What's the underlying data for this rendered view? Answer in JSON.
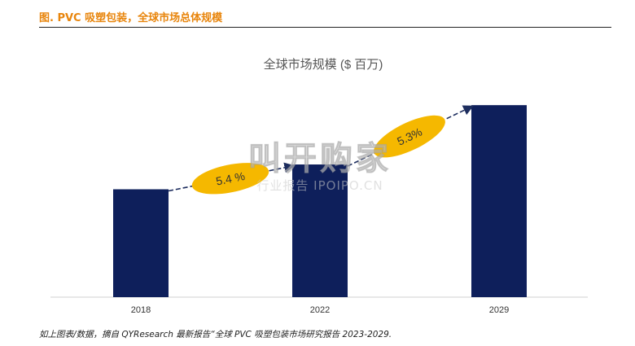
{
  "figure": {
    "title": "图.  PVC 吸塑包装，全球市场总体规模",
    "source": "如上图表/数据，摘自 QYResearch 最新报告“全球 PVC 吸塑包装市场研究报告 2023-2029."
  },
  "watermark": {
    "line1": "叫开购家",
    "line2": "行业报告 IPOIPO.CN"
  },
  "colors": {
    "bar": "#0e1f5b",
    "ellipse": "#f5b800",
    "arrow": "#1d2d5e",
    "title_accent": "#e8850c"
  },
  "chart_data": {
    "type": "bar",
    "title": "全球市场规模 ($ 百万)",
    "categories": [
      "2018",
      "2022",
      "2029"
    ],
    "values": [
      100,
      123,
      178
    ],
    "ylim": [
      0,
      200
    ],
    "grid": false,
    "growth_annotations": [
      {
        "from": "2018",
        "to": "2022",
        "label": "5.4 %"
      },
      {
        "from": "2022",
        "to": "2029",
        "label": "5.3%"
      }
    ]
  }
}
